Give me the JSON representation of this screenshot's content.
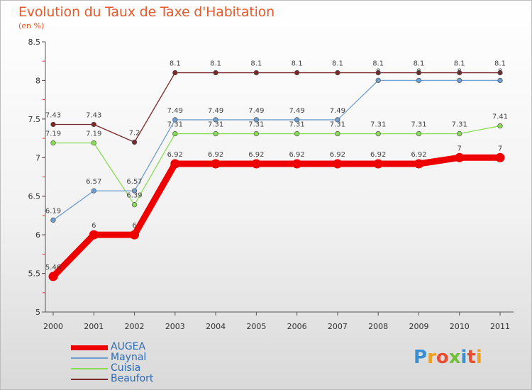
{
  "header": {
    "title": "Evolution du Taux de Taxe d'Habitation",
    "subtitle": "(en %)"
  },
  "chart_data": {
    "type": "line",
    "title": "Evolution du Taux de Taxe d'Habitation",
    "ylabel": "(en %)",
    "xlabel": "",
    "categories": [
      "2000",
      "2001",
      "2002",
      "2003",
      "2004",
      "2005",
      "2006",
      "2007",
      "2008",
      "2009",
      "2010",
      "2011"
    ],
    "ylim": [
      5,
      8.5
    ],
    "yticks": [
      5,
      5.5,
      6,
      6.5,
      7,
      7.5,
      8,
      8.5
    ],
    "ytick_labels": [
      "5",
      "5.5",
      "6",
      "6.5",
      "7",
      "7.5",
      "8",
      "8.5"
    ],
    "grid": false,
    "legend_position": "bottom-left",
    "series": [
      {
        "name": "AUGEA",
        "color": "#ee0000",
        "values": [
          5.46,
          6,
          6,
          6.92,
          6.92,
          6.92,
          6.92,
          6.92,
          6.92,
          6.92,
          7,
          7
        ],
        "labels": [
          "5.46",
          "6",
          "6",
          "6.92",
          "6.92",
          "6.92",
          "6.92",
          "6.92",
          "6.92",
          "6.92",
          "7",
          "7"
        ]
      },
      {
        "name": "Maynal",
        "color": "#6f9fcf",
        "values": [
          6.19,
          6.57,
          6.57,
          7.49,
          7.49,
          7.49,
          7.49,
          7.49,
          8,
          8,
          8,
          8
        ],
        "labels": [
          "6.19",
          "6.57",
          "6.57",
          "7.49",
          "7.49",
          "7.49",
          "7.49",
          "7.49",
          "8",
          "8",
          "8",
          "8"
        ]
      },
      {
        "name": "Cuisia",
        "color": "#88dd55",
        "values": [
          7.19,
          7.19,
          6.39,
          7.31,
          7.31,
          7.31,
          7.31,
          7.31,
          7.31,
          7.31,
          7.31,
          7.41
        ],
        "labels": [
          "7.19",
          "7.19",
          "6.39",
          "7.31",
          "7.31",
          "7.31",
          "7.31",
          "7.31",
          "7.31",
          "7.31",
          "7.31",
          "7.41"
        ]
      },
      {
        "name": "Beaufort",
        "color": "#7a2828",
        "values": [
          7.43,
          7.43,
          7.2,
          8.1,
          8.1,
          8.1,
          8.1,
          8.1,
          8.1,
          8.1,
          8.1,
          8.1
        ],
        "labels": [
          "7.43",
          "7.43",
          "7.2",
          "8.1",
          "8.1",
          "8.1",
          "8.1",
          "8.1",
          "8.1",
          "8.1",
          "8.1",
          "8.1"
        ]
      }
    ]
  },
  "legend": {
    "items": [
      "AUGEA",
      "Maynal",
      "Cuisia",
      "Beaufort"
    ]
  },
  "logo": {
    "text": "Proxiti"
  },
  "colors": {
    "title": "#e8592b",
    "legend_text": "#2d6bb5"
  }
}
